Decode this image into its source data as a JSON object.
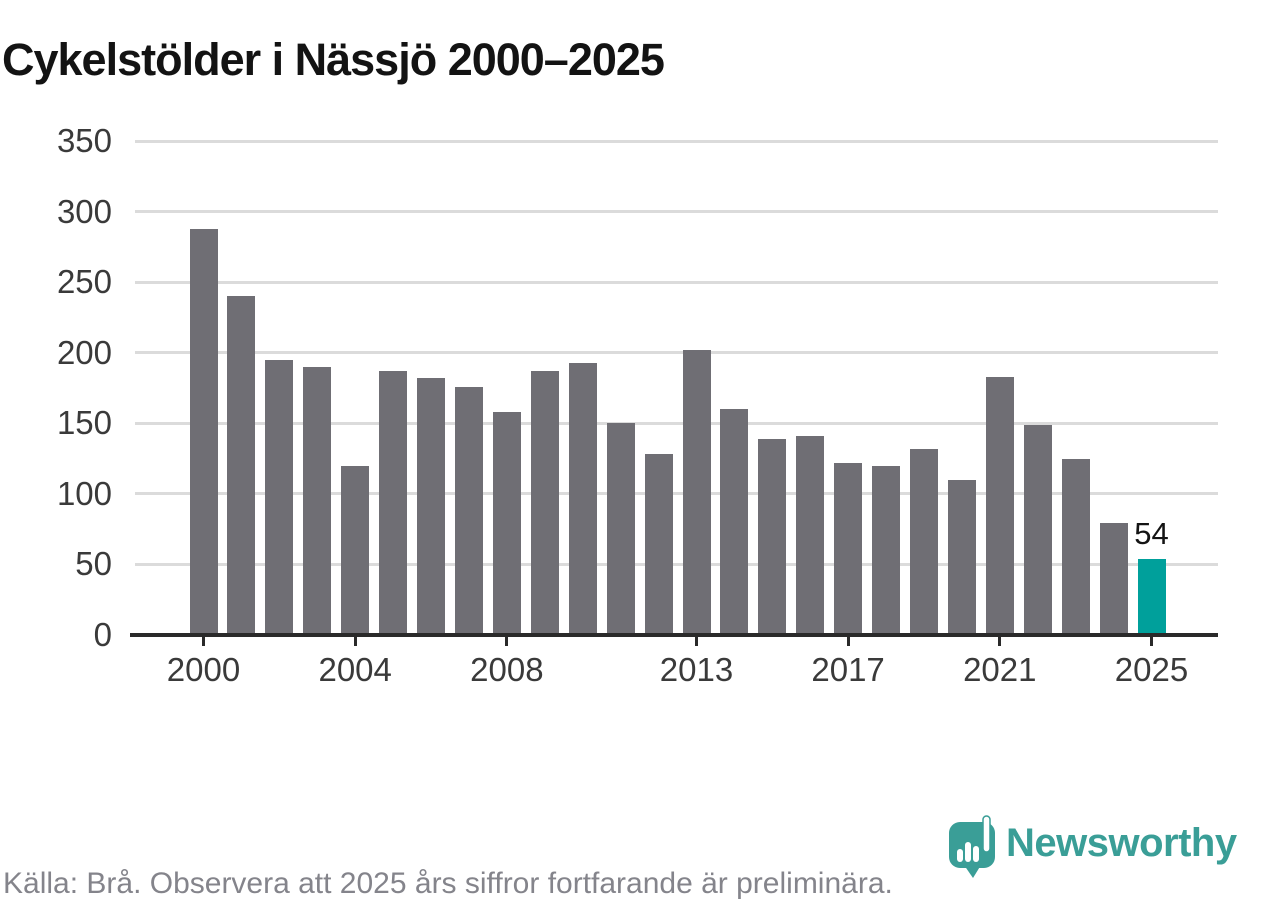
{
  "title": "Cykelstölder i Nässjö 2000–2025",
  "chart_data": {
    "type": "bar",
    "title": "Cykelstölder i Nässjö 2000–2025",
    "series_name": "Cykelstölder",
    "x": [
      2000,
      2001,
      2002,
      2003,
      2004,
      2005,
      2006,
      2007,
      2008,
      2009,
      2010,
      2011,
      2012,
      2013,
      2014,
      2015,
      2016,
      2017,
      2018,
      2019,
      2020,
      2021,
      2022,
      2023,
      2024,
      2025
    ],
    "values": [
      288,
      240,
      195,
      190,
      120,
      187,
      182,
      176,
      158,
      187,
      193,
      150,
      128,
      202,
      160,
      139,
      141,
      122,
      120,
      132,
      110,
      183,
      149,
      125,
      79,
      54
    ],
    "ylim": [
      0,
      350
    ],
    "y_ticks": [
      0,
      50,
      100,
      150,
      200,
      250,
      300,
      350
    ],
    "x_ticks": [
      2000,
      2004,
      2008,
      2013,
      2017,
      2021,
      2025
    ],
    "grid": "horizontal",
    "legend": "none",
    "bar_color": "#6f6e74",
    "highlight": {
      "year": 2025,
      "color": "#00a09b",
      "label": "54"
    }
  },
  "footer": {
    "source": "Källa: Brå. Observera att 2025 års siffror fortfarande är preliminära."
  },
  "branding": {
    "wordmark": "Newsworthy",
    "icon": "newsworthy-speech-bubble-bars-icon",
    "color": "#3a9e97"
  }
}
